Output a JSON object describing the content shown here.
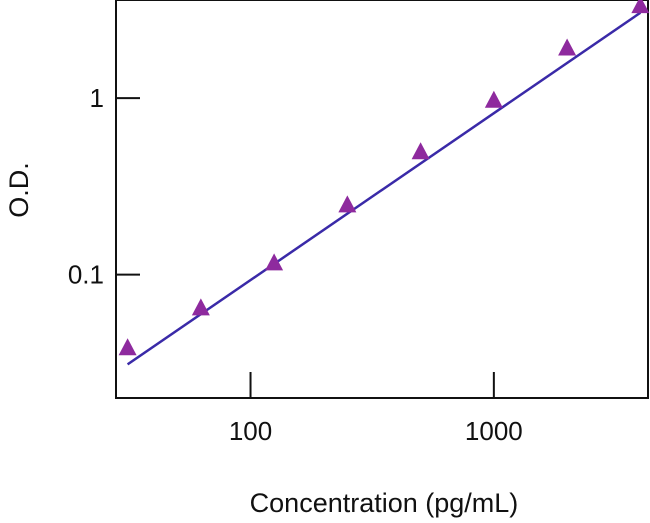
{
  "chart_data": {
    "type": "scatter",
    "title": "",
    "xlabel": "Concentration (pg/mL)",
    "ylabel": "O.D.",
    "x_scale": "log",
    "y_scale": "log",
    "xlim": [
      28,
      4300
    ],
    "ylim": [
      0.02,
      3.6
    ],
    "x_ticks": [
      {
        "value": 100,
        "label": "100"
      },
      {
        "value": 1000,
        "label": "1000"
      }
    ],
    "y_ticks": [
      {
        "value": 0.1,
        "label": "0.1"
      },
      {
        "value": 1,
        "label": "1"
      }
    ],
    "grid": false,
    "series": [
      {
        "x": [
          31.25,
          62.5,
          125,
          250,
          500,
          1000,
          2000,
          4000
        ],
        "values": [
          0.038,
          0.064,
          0.115,
          0.245,
          0.49,
          0.96,
          1.9,
          3.3
        ],
        "marker": "triangle",
        "color": "#8e2a9e"
      }
    ],
    "fit_line": {
      "x": [
        31.25,
        4000
      ],
      "values": [
        0.031,
        3.05
      ],
      "color": "#3a2aa8"
    }
  }
}
